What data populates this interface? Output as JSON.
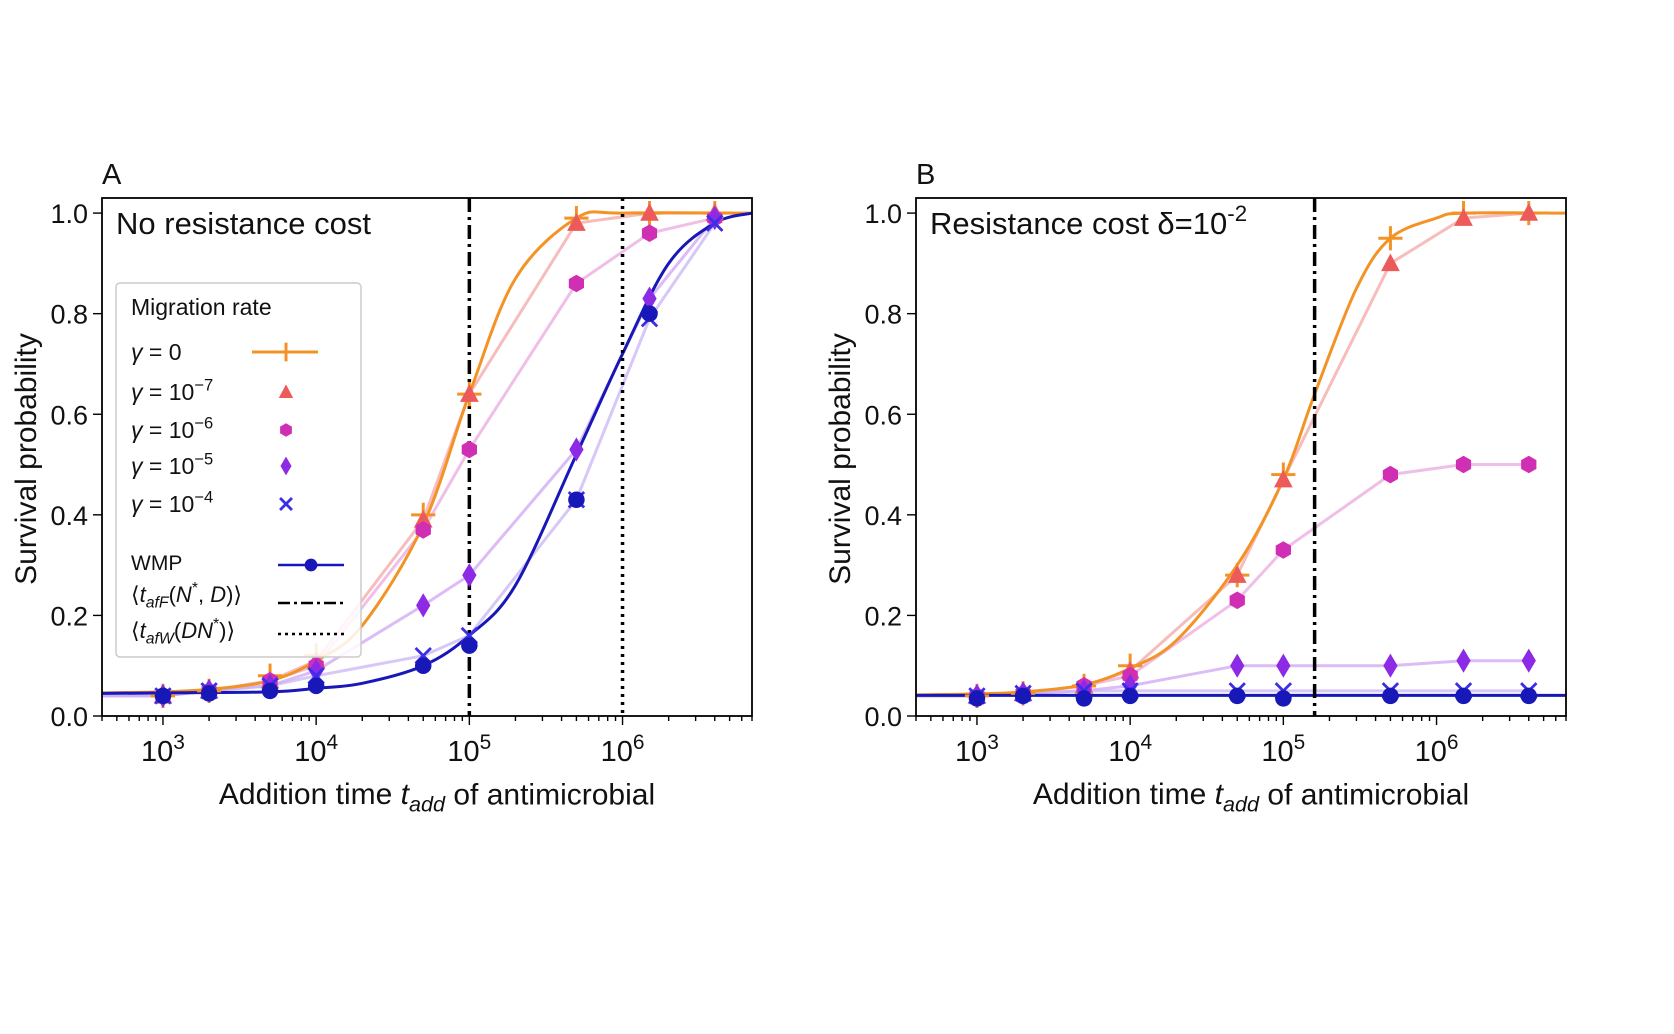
{
  "chart_data": [
    {
      "panel_label": "A",
      "type": "scatter",
      "annotation": "No resistance cost",
      "xlabel": "Addition time t_add of antimicrobial",
      "ylabel": "Survival probability",
      "xscale": "log",
      "xlim": [
        400,
        7000000
      ],
      "ylim": [
        0,
        1.03
      ],
      "x_ticks": [
        1000,
        10000,
        100000,
        1000000
      ],
      "y_ticks": [
        0.0,
        0.2,
        0.4,
        0.6,
        0.8,
        1.0
      ],
      "y_tick_labels": [
        "0.0",
        "0.2",
        "0.4",
        "0.6",
        "0.8",
        "1.0"
      ],
      "vlines": [
        {
          "x": 100000,
          "style": "dashdot",
          "legend": "⟨t_afF(N*, D)⟩"
        },
        {
          "x": 1000000,
          "style": "dotted",
          "legend": "⟨t_afW(DN*)⟩"
        }
      ],
      "legend_title": "Migration rate",
      "legend_placement": "left",
      "fit_curves": [
        {
          "name": "γ = 0",
          "color": "#f39325",
          "points": [
            [
              400,
              0.046
            ],
            [
              1000,
              0.048
            ],
            [
              2000,
              0.053
            ],
            [
              5000,
              0.07
            ],
            [
              10000,
              0.11
            ],
            [
              20000,
              0.18
            ],
            [
              50000,
              0.38
            ],
            [
              100000,
              0.64
            ],
            [
              200000,
              0.87
            ],
            [
              500000,
              0.99
            ],
            [
              1000000,
              1.0
            ],
            [
              7000000,
              1.0
            ]
          ]
        },
        {
          "name": "WMP",
          "color": "#1818b8",
          "points": [
            [
              400,
              0.045
            ],
            [
              1000,
              0.046
            ],
            [
              5000,
              0.048
            ],
            [
              10000,
              0.055
            ],
            [
              20000,
              0.065
            ],
            [
              50000,
              0.1
            ],
            [
              100000,
              0.16
            ],
            [
              200000,
              0.26
            ],
            [
              500000,
              0.52
            ],
            [
              1000000,
              0.72
            ],
            [
              2000000,
              0.9
            ],
            [
              4000000,
              0.98
            ],
            [
              7000000,
              1.0
            ]
          ]
        }
      ],
      "series": [
        {
          "name": "γ = 0",
          "legend": "γ = 0",
          "marker": "plus",
          "color": "#f39325",
          "x": [
            1000,
            2000,
            5000,
            10000,
            50000,
            100000,
            500000,
            1500000,
            4000000
          ],
          "y": [
            0.04,
            0.05,
            0.08,
            0.12,
            0.4,
            0.64,
            0.99,
            1.0,
            1.0
          ]
        },
        {
          "name": "γ = 10^-7",
          "legend": "γ = 10",
          "legend_exp": "−7",
          "marker": "triangle",
          "color": "#ec5a5a",
          "x": [
            1000,
            2000,
            5000,
            10000,
            50000,
            100000,
            500000,
            1500000,
            4000000
          ],
          "y": [
            0.04,
            0.05,
            0.07,
            0.11,
            0.39,
            0.64,
            0.98,
            1.0,
            1.0
          ]
        },
        {
          "name": "γ = 10^-6",
          "legend": "γ = 10",
          "legend_exp": "−6",
          "marker": "hexagon",
          "color": "#d02fb4",
          "x": [
            1000,
            2000,
            5000,
            10000,
            50000,
            100000,
            500000,
            1500000,
            4000000
          ],
          "y": [
            0.04,
            0.05,
            0.07,
            0.1,
            0.37,
            0.53,
            0.86,
            0.96,
            0.99
          ]
        },
        {
          "name": "γ = 10^-5",
          "legend": "γ = 10",
          "legend_exp": "−5",
          "marker": "diamond",
          "color": "#8c2ae6",
          "x": [
            1000,
            2000,
            5000,
            10000,
            50000,
            100000,
            500000,
            1500000,
            4000000
          ],
          "y": [
            0.04,
            0.05,
            0.06,
            0.09,
            0.22,
            0.28,
            0.53,
            0.83,
            0.99
          ]
        },
        {
          "name": "γ = 10^-4",
          "legend": "γ = 10",
          "legend_exp": "−4",
          "marker": "x",
          "color": "#3a2ee6",
          "x": [
            1000,
            2000,
            5000,
            10000,
            50000,
            100000,
            500000,
            1500000,
            4000000
          ],
          "y": [
            0.04,
            0.05,
            0.06,
            0.08,
            0.12,
            0.16,
            0.43,
            0.79,
            0.98
          ]
        },
        {
          "name": "WMP",
          "legend": "WMP",
          "marker": "circle",
          "color": "#1818b8",
          "x": [
            1000,
            2000,
            5000,
            10000,
            50000,
            100000,
            500000,
            1500000
          ],
          "y": [
            0.04,
            0.045,
            0.05,
            0.06,
            0.1,
            0.14,
            0.43,
            0.8
          ]
        }
      ]
    },
    {
      "panel_label": "B",
      "type": "scatter",
      "annotation": "Resistance cost δ=10",
      "annotation_exp": "-2",
      "xlabel": "Addition time t_add of antimicrobial",
      "ylabel": "Survival probability",
      "xscale": "log",
      "xlim": [
        400,
        7000000
      ],
      "ylim": [
        0,
        1.03
      ],
      "x_ticks": [
        1000,
        10000,
        100000,
        1000000
      ],
      "y_ticks": [
        0.0,
        0.2,
        0.4,
        0.6,
        0.8,
        1.0
      ],
      "y_tick_labels": [
        "0.0",
        "0.2",
        "0.4",
        "0.6",
        "0.8",
        "1.0"
      ],
      "vlines": [
        {
          "x": 160000,
          "style": "dashdot"
        }
      ],
      "fit_curves": [
        {
          "name": "γ = 0",
          "color": "#f39325",
          "points": [
            [
              400,
              0.042
            ],
            [
              1000,
              0.044
            ],
            [
              2000,
              0.048
            ],
            [
              5000,
              0.062
            ],
            [
              10000,
              0.095
            ],
            [
              20000,
              0.15
            ],
            [
              50000,
              0.3
            ],
            [
              100000,
              0.47
            ],
            [
              160000,
              0.64
            ],
            [
              300000,
              0.85
            ],
            [
              500000,
              0.95
            ],
            [
              1000000,
              0.99
            ],
            [
              1500000,
              1.0
            ],
            [
              7000000,
              1.0
            ]
          ]
        },
        {
          "name": "WMP",
          "color": "#1818b8",
          "points": [
            [
              400,
              0.041
            ],
            [
              7000000,
              0.041
            ]
          ]
        }
      ],
      "series": [
        {
          "name": "γ = 0",
          "marker": "plus",
          "color": "#f39325",
          "x": [
            1000,
            2000,
            5000,
            10000,
            50000,
            100000,
            500000,
            1500000,
            4000000
          ],
          "y": [
            0.04,
            0.045,
            0.06,
            0.1,
            0.28,
            0.48,
            0.95,
            1.0,
            1.0
          ]
        },
        {
          "name": "γ = 10^-7",
          "marker": "triangle",
          "color": "#ec5a5a",
          "x": [
            1000,
            2000,
            5000,
            10000,
            50000,
            100000,
            500000,
            1500000,
            4000000
          ],
          "y": [
            0.04,
            0.045,
            0.06,
            0.09,
            0.28,
            0.47,
            0.9,
            0.99,
            1.0
          ]
        },
        {
          "name": "γ = 10^-6",
          "marker": "hexagon",
          "color": "#d02fb4",
          "x": [
            1000,
            2000,
            5000,
            10000,
            50000,
            100000,
            500000,
            1500000,
            4000000
          ],
          "y": [
            0.04,
            0.045,
            0.06,
            0.08,
            0.23,
            0.33,
            0.48,
            0.5,
            0.5
          ]
        },
        {
          "name": "γ = 10^-5",
          "marker": "diamond",
          "color": "#8c2ae6",
          "x": [
            1000,
            2000,
            5000,
            10000,
            50000,
            100000,
            500000,
            1500000,
            4000000
          ],
          "y": [
            0.04,
            0.045,
            0.05,
            0.06,
            0.1,
            0.1,
            0.1,
            0.11,
            0.11
          ]
        },
        {
          "name": "γ = 10^-4",
          "marker": "x",
          "color": "#3a2ee6",
          "x": [
            1000,
            2000,
            5000,
            10000,
            50000,
            100000,
            500000,
            1500000,
            4000000
          ],
          "y": [
            0.04,
            0.045,
            0.05,
            0.05,
            0.05,
            0.05,
            0.05,
            0.05,
            0.05
          ]
        },
        {
          "name": "WMP",
          "marker": "circle",
          "color": "#1818b8",
          "x": [
            1000,
            2000,
            5000,
            10000,
            50000,
            100000,
            500000,
            1500000,
            4000000
          ],
          "y": [
            0.035,
            0.04,
            0.035,
            0.04,
            0.04,
            0.035,
            0.04,
            0.04,
            0.04
          ]
        }
      ]
    }
  ]
}
